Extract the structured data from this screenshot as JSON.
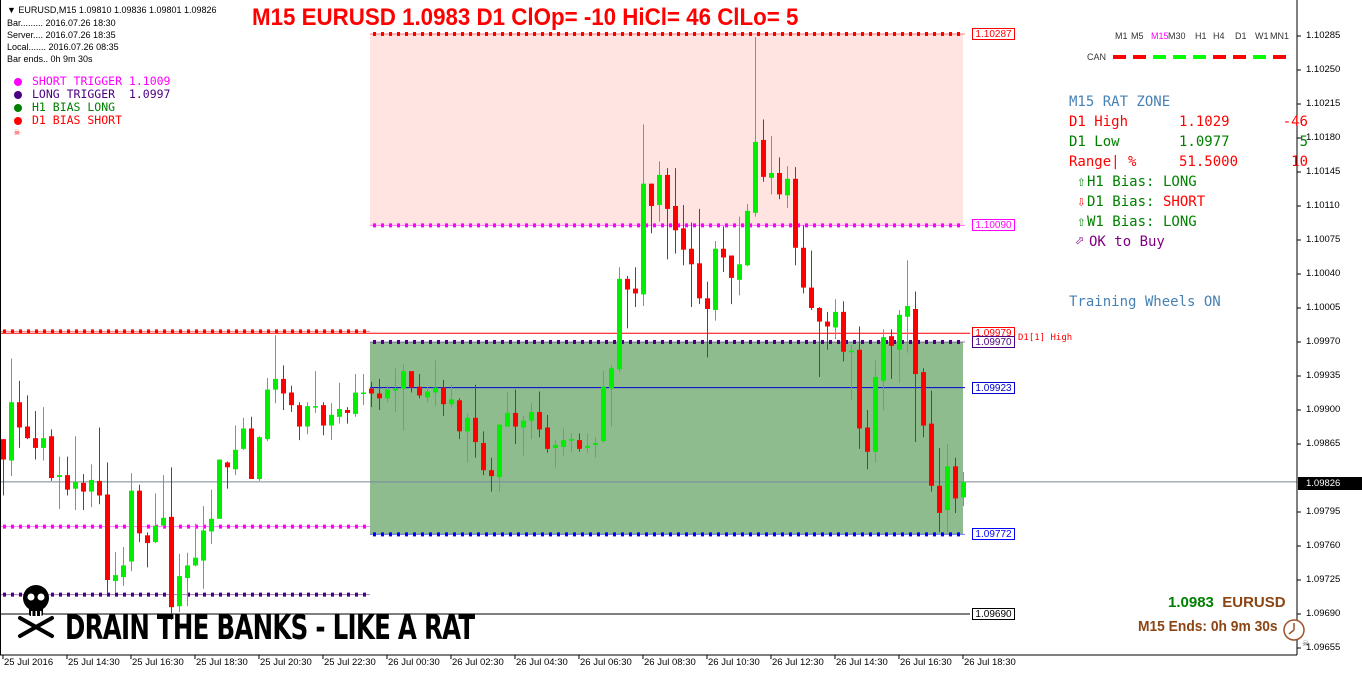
{
  "header": {
    "symbol_line": "EURUSD,M15  1.09810 1.09836 1.09801 1.09826",
    "bar": "Bar......... 2016.07.26 18:30",
    "server": "Server.... 2016.07.26 18:35",
    "local": "Local....... 2016.07.26 08:35",
    "bar_ends": "Bar ends.. 0h 9m 30s"
  },
  "legend": [
    {
      "text": "SHORT TRIGGER 1.1009",
      "color": "#ff00ff"
    },
    {
      "text": "LONG TRIGGER  1.0997",
      "color": "#4b0082"
    },
    {
      "text": "H1 BIAS LONG",
      "color": "#008000"
    },
    {
      "text": "D1 BIAS SHORT",
      "color": "#ff0000"
    }
  ],
  "title": "M15 EURUSD 1.0983 D1 ClOp= -10 HiCl= 46 ClLo= 5",
  "timeframes": {
    "items": [
      "M1",
      "M5",
      "M15",
      "M30",
      "H1",
      "H4",
      "D1",
      "W1",
      "MN1"
    ],
    "active": "M15",
    "can_label": "CAN",
    "can_colors": [
      "#ff0000",
      "#ff0000",
      "#00ff00",
      "#00ff00",
      "#00ff00",
      "#ff0000",
      "#ff0000",
      "#00ff00",
      "#ff0000"
    ]
  },
  "rat_zone": {
    "heading": "M15 RAT ZONE",
    "rows": [
      {
        "label": "D1 High",
        "value": "1.1029",
        "pips": "-46",
        "color": "#ff0000"
      },
      {
        "label": "D1 Low",
        "value": "1.0977",
        "pips": "5",
        "color": "#008000"
      },
      {
        "label": "Range| %",
        "value": "51.5000",
        "pips": "10",
        "color": "#ff0000"
      }
    ],
    "bias": [
      {
        "arrow": "⇧",
        "text": "H1 Bias: ",
        "value": "LONG",
        "color": "#008000",
        "value_color": "#008000"
      },
      {
        "arrow": "⇩",
        "text": "D1 Bias: ",
        "value": "SHORT",
        "color": "#008000",
        "value_color": "#ff0000",
        "arrow_color": "#ff0000"
      },
      {
        "arrow": "⇧",
        "text": "W1 Bias: ",
        "value": "LONG",
        "color": "#008000",
        "value_color": "#008000"
      }
    ],
    "ok": {
      "arrow": "⬀",
      "text": "OK to Buy",
      "color": "#800080"
    },
    "training": "Training Wheels ON"
  },
  "bottom": {
    "slogan": "DRAIN THE BANKS - LIKE A RAT",
    "price": "1.0983",
    "symbol": "EURUSD",
    "ends": "M15 Ends: 0h 9m 30s"
  },
  "colors": {
    "bull": "#00ee00",
    "bear": "#ff0000",
    "sell_zone": "#ffe4e1",
    "buy_zone": "#8fbc8f",
    "current_price_line": "#778899"
  },
  "chart_data": {
    "type": "candlestick",
    "symbol": "EURUSD",
    "timeframe": "M15",
    "ylim": [
      1.0965,
      1.1031
    ],
    "grid": false,
    "price_ticks": [
      "1.10285",
      "1.10250",
      "1.10215",
      "1.10180",
      "1.10145",
      "1.10110",
      "1.10075",
      "1.10040",
      "1.10005",
      "1.09970",
      "1.09935",
      "1.09900",
      "1.09865",
      "1.09795",
      "1.09760",
      "1.09725",
      "1.09690",
      "1.09655"
    ],
    "time_ticks": [
      "25 Jul 2016",
      "25 Jul 14:30",
      "25 Jul 16:30",
      "25 Jul 18:30",
      "25 Jul 20:30",
      "25 Jul 22:30",
      "26 Jul 00:30",
      "26 Jul 02:30",
      "26 Jul 04:30",
      "26 Jul 06:30",
      "26 Jul 08:30",
      "26 Jul 10:30",
      "26 Jul 12:30",
      "26 Jul 14:30",
      "26 Jul 16:30",
      "26 Jul 18:30"
    ],
    "current_price": "1.09826",
    "levels": [
      {
        "price": 1.10287,
        "label": "1.10287",
        "color": "#ff0000",
        "style": "dotted",
        "segment": "current-day"
      },
      {
        "price": 1.1009,
        "label": "1.10090",
        "color": "#ff00ff",
        "style": "dotted",
        "segment": "current-day"
      },
      {
        "price": 1.09979,
        "label": "1.09979",
        "color": "#ff0000",
        "style": "solid",
        "segment": "full",
        "tag": "D1[1] High"
      },
      {
        "price": 1.0997,
        "label": "1.09970",
        "color": "#4b0082",
        "style": "dotted",
        "segment": "current-day"
      },
      {
        "price": 1.09923,
        "label": "1.09923",
        "color": "#0000cd",
        "style": "solid",
        "segment": "current-day"
      },
      {
        "price": 1.09772,
        "label": "1.09772",
        "color": "#0000ff",
        "style": "dotted",
        "segment": "current-day"
      },
      {
        "price": 1.0969,
        "label": "1.09690",
        "color": "#000000",
        "style": "solid",
        "segment": "full"
      },
      {
        "price": 1.09981,
        "color": "#ff0000",
        "style": "dotted",
        "segment": "prior-day"
      },
      {
        "price": 1.0978,
        "color": "#ff00ff",
        "style": "dotted",
        "segment": "prior-day"
      },
      {
        "price": 1.0971,
        "color": "#4b0082",
        "style": "dotted",
        "segment": "prior-day"
      }
    ],
    "zones": [
      {
        "from": 1.1009,
        "to": 1.10287,
        "color": "#ffe4e1"
      },
      {
        "from": 1.09772,
        "to": 1.0997,
        "color": "#8fbc8f"
      }
    ],
    "ohlc": [
      [
        1.0987,
        1.0987,
        1.09812,
        1.09849
      ],
      [
        1.09848,
        1.09953,
        1.09832,
        1.09908
      ],
      [
        1.09908,
        1.0993,
        1.09861,
        1.09882
      ],
      [
        1.09883,
        1.09915,
        1.0987,
        1.09871
      ],
      [
        1.09871,
        1.09899,
        1.09849,
        1.09861
      ],
      [
        1.09861,
        1.09903,
        1.09848,
        1.09871
      ],
      [
        1.09873,
        1.0988,
        1.09827,
        1.0983
      ],
      [
        1.09831,
        1.09852,
        1.09798,
        1.09833
      ],
      [
        1.09833,
        1.09852,
        1.09812,
        1.09818
      ],
      [
        1.09819,
        1.09873,
        1.09797,
        1.09826
      ],
      [
        1.09825,
        1.09834,
        1.09797,
        1.09816
      ],
      [
        1.09816,
        1.09844,
        1.098,
        1.09828
      ],
      [
        1.09827,
        1.09882,
        1.09803,
        1.09812
      ],
      [
        1.09813,
        1.09846,
        1.09712,
        1.09725
      ],
      [
        1.09724,
        1.09754,
        1.09712,
        1.0973
      ],
      [
        1.09728,
        1.09759,
        1.09719,
        1.0974
      ],
      [
        1.09744,
        1.09835,
        1.09734,
        1.09817
      ],
      [
        1.09817,
        1.09823,
        1.09764,
        1.09773
      ],
      [
        1.09771,
        1.09774,
        1.09738,
        1.09763
      ],
      [
        1.09764,
        1.09814,
        1.09763,
        1.09781
      ],
      [
        1.09781,
        1.09833,
        1.09779,
        1.09789
      ],
      [
        1.0979,
        1.09841,
        1.09684,
        1.09697
      ],
      [
        1.09698,
        1.09752,
        1.09692,
        1.09729
      ],
      [
        1.09727,
        1.09753,
        1.09698,
        1.0974
      ],
      [
        1.0974,
        1.09783,
        1.09739,
        1.09748
      ],
      [
        1.09745,
        1.09801,
        1.09716,
        1.09776
      ],
      [
        1.09775,
        1.09818,
        1.09762,
        1.09788
      ],
      [
        1.09788,
        1.09849,
        1.09788,
        1.09849
      ],
      [
        1.09846,
        1.09847,
        1.09819,
        1.09841
      ],
      [
        1.09839,
        1.09884,
        1.09833,
        1.09859
      ],
      [
        1.0986,
        1.09892,
        1.09859,
        1.09881
      ],
      [
        1.09881,
        1.09893,
        1.09829,
        1.09829
      ],
      [
        1.09829,
        1.09873,
        1.09827,
        1.09872
      ],
      [
        1.0987,
        1.09933,
        1.09868,
        1.09921
      ],
      [
        1.09921,
        1.09977,
        1.09907,
        1.09932
      ],
      [
        1.09932,
        1.09946,
        1.099,
        1.09917
      ],
      [
        1.09918,
        1.09925,
        1.09898,
        1.09905
      ],
      [
        1.09905,
        1.09908,
        1.09869,
        1.09883
      ],
      [
        1.09883,
        1.09908,
        1.09875,
        1.09904
      ],
      [
        1.09903,
        1.0994,
        1.09897,
        1.09904
      ],
      [
        1.09905,
        1.09908,
        1.09874,
        1.09884
      ],
      [
        1.09884,
        1.09907,
        1.09869,
        1.09895
      ],
      [
        1.09893,
        1.09928,
        1.09886,
        1.09901
      ],
      [
        1.099,
        1.09903,
        1.09886,
        1.09897
      ],
      [
        1.09896,
        1.09937,
        1.09893,
        1.09918
      ],
      [
        1.09917,
        1.09937,
        1.09905,
        1.09918
      ],
      [
        1.09922,
        1.09929,
        1.09903,
        1.09917
      ],
      [
        1.09917,
        1.09932,
        1.099,
        1.09912
      ],
      [
        1.09912,
        1.09925,
        1.09908,
        1.09921
      ],
      [
        1.0992,
        1.09943,
        1.09898,
        1.09922
      ],
      [
        1.09922,
        1.09947,
        1.09879,
        1.0994
      ],
      [
        1.0994,
        1.0994,
        1.09918,
        1.09923
      ],
      [
        1.09924,
        1.09937,
        1.09912,
        1.09915
      ],
      [
        1.09913,
        1.09924,
        1.09908,
        1.09919
      ],
      [
        1.09918,
        1.09951,
        1.09904,
        1.09923
      ],
      [
        1.09923,
        1.09931,
        1.09894,
        1.09906
      ],
      [
        1.09906,
        1.09926,
        1.09903,
        1.09911
      ],
      [
        1.0991,
        1.09912,
        1.0987,
        1.09878
      ],
      [
        1.09878,
        1.09896,
        1.09846,
        1.09892
      ],
      [
        1.09892,
        1.09926,
        1.09851,
        1.09867
      ],
      [
        1.09866,
        1.09878,
        1.09833,
        1.09838
      ],
      [
        1.09838,
        1.09851,
        1.09816,
        1.09832
      ],
      [
        1.09831,
        1.09885,
        1.09816,
        1.09885
      ],
      [
        1.09883,
        1.09919,
        1.09883,
        1.09897
      ],
      [
        1.09897,
        1.09921,
        1.09865,
        1.09883
      ],
      [
        1.09882,
        1.09894,
        1.09853,
        1.09889
      ],
      [
        1.09889,
        1.09907,
        1.0987,
        1.09898
      ],
      [
        1.09898,
        1.09919,
        1.09872,
        1.0988
      ],
      [
        1.09882,
        1.09895,
        1.09856,
        1.0986
      ],
      [
        1.09861,
        1.09869,
        1.09841,
        1.09864
      ],
      [
        1.09862,
        1.09881,
        1.09853,
        1.09869
      ],
      [
        1.09869,
        1.09876,
        1.09857,
        1.0987
      ],
      [
        1.09869,
        1.09876,
        1.09857,
        1.0986
      ],
      [
        1.09861,
        1.09876,
        1.09856,
        1.09863
      ],
      [
        1.09864,
        1.09872,
        1.09851,
        1.09866
      ],
      [
        1.09868,
        1.0994,
        1.09866,
        1.09924
      ],
      [
        1.09922,
        1.09946,
        1.09883,
        1.09943
      ],
      [
        1.09942,
        1.10047,
        1.09939,
        1.10035
      ],
      [
        1.10035,
        1.10038,
        1.09984,
        1.10024
      ],
      [
        1.10025,
        1.10047,
        1.10006,
        1.1002
      ],
      [
        1.10019,
        1.10194,
        1.10007,
        1.10133
      ],
      [
        1.10133,
        1.10133,
        1.10082,
        1.1011
      ],
      [
        1.10111,
        1.10156,
        1.10094,
        1.10142
      ],
      [
        1.10142,
        1.10149,
        1.10055,
        1.10107
      ],
      [
        1.1011,
        1.10149,
        1.10061,
        1.10085
      ],
      [
        1.10087,
        1.10111,
        1.10049,
        1.10065
      ],
      [
        1.10066,
        1.10093,
        1.10006,
        1.1005
      ],
      [
        1.10051,
        1.10107,
        1.10009,
        1.10015
      ],
      [
        1.10015,
        1.10032,
        1.09954,
        1.10004
      ],
      [
        1.10003,
        1.10074,
        1.09992,
        1.10066
      ],
      [
        1.10066,
        1.10089,
        1.10042,
        1.10057
      ],
      [
        1.10059,
        1.10059,
        1.10009,
        1.10036
      ],
      [
        1.10034,
        1.10099,
        1.10018,
        1.1005
      ],
      [
        1.10049,
        1.10112,
        1.10048,
        1.10105
      ],
      [
        1.10103,
        1.10284,
        1.10099,
        1.10176
      ],
      [
        1.10178,
        1.10199,
        1.10135,
        1.1014
      ],
      [
        1.10139,
        1.10182,
        1.10122,
        1.10144
      ],
      [
        1.10144,
        1.1016,
        1.10117,
        1.10122
      ],
      [
        1.10121,
        1.10151,
        1.10108,
        1.10138
      ],
      [
        1.10138,
        1.1015,
        1.10049,
        1.10067
      ],
      [
        1.10067,
        1.1009,
        1.1002,
        1.10026
      ],
      [
        1.10026,
        1.10064,
        1.10003,
        1.10005
      ],
      [
        1.10005,
        1.10006,
        1.09934,
        1.09991
      ],
      [
        1.09991,
        1.10001,
        1.09962,
        1.09986
      ],
      [
        1.09985,
        1.10014,
        1.09973,
        1.10001
      ],
      [
        1.10001,
        1.10012,
        1.0995,
        1.0996
      ],
      [
        1.0996,
        1.09967,
        1.0991,
        1.09961
      ],
      [
        1.09962,
        1.09986,
        1.0986,
        1.09881
      ],
      [
        1.09882,
        1.099,
        1.09839,
        1.09857
      ],
      [
        1.09857,
        1.09951,
        1.09846,
        1.09934
      ],
      [
        1.0993,
        1.09983,
        1.099,
        1.09975
      ],
      [
        1.09976,
        1.09983,
        1.09932,
        1.09966
      ],
      [
        1.09962,
        1.10003,
        1.09928,
        1.09998
      ],
      [
        1.09996,
        1.10054,
        1.09959,
        1.10007
      ],
      [
        1.10004,
        1.10022,
        1.09867,
        1.09937
      ],
      [
        1.09939,
        1.09943,
        1.09872,
        1.09884
      ],
      [
        1.09886,
        1.0992,
        1.09816,
        1.09822
      ],
      [
        1.09822,
        1.09861,
        1.09774,
        1.09794
      ],
      [
        1.09797,
        1.09865,
        1.09774,
        1.09842
      ],
      [
        1.09842,
        1.09851,
        1.09794,
        1.09809
      ],
      [
        1.0981,
        1.09836,
        1.09801,
        1.09826
      ]
    ]
  }
}
